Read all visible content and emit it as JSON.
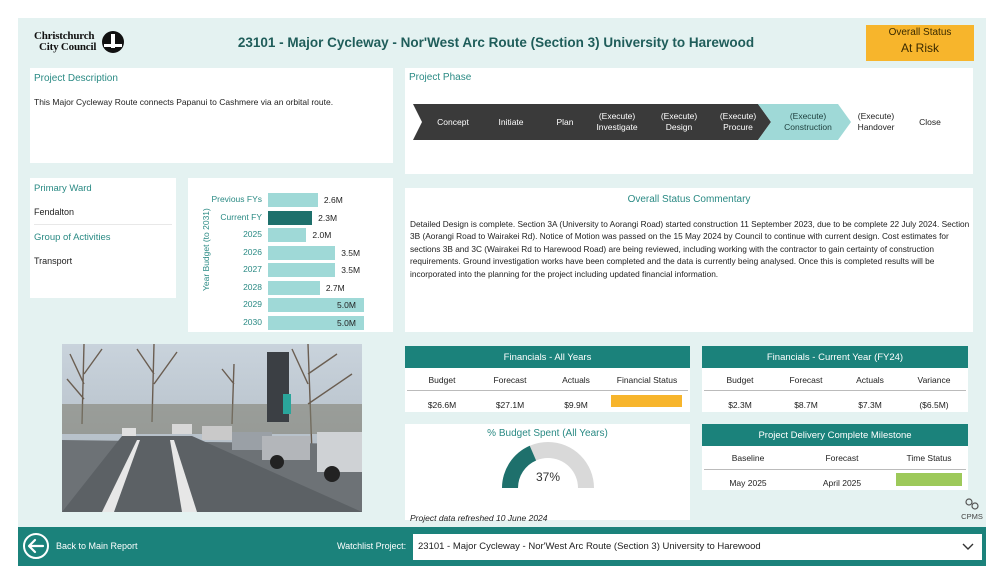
{
  "header": {
    "logo_line1": "Christchurch",
    "logo_line2": "City Council",
    "title": "23101 - Major Cycleway - Nor'West Arc Route (Section 3) University to Harewood",
    "overall_status_label": "Overall Status",
    "overall_status_value": "At Risk",
    "status_color": "#f7b52c"
  },
  "description": {
    "heading": "Project Description",
    "text": "This Major Cycleway Route connects Papanui to Cashmere via an orbital route."
  },
  "phase": {
    "heading": "Project Phase",
    "steps": [
      {
        "label": "Concept",
        "state": "done"
      },
      {
        "label": "Initiate",
        "state": "done"
      },
      {
        "label": "Plan",
        "state": "done"
      },
      {
        "label": "(Execute)\nInvestigate",
        "state": "done"
      },
      {
        "label": "(Execute)\nDesign",
        "state": "done"
      },
      {
        "label": "(Execute)\nProcure",
        "state": "done"
      },
      {
        "label": "(Execute)\nConstruction",
        "state": "current"
      },
      {
        "label": "(Execute)\nHandover",
        "state": "future"
      },
      {
        "label": "Close",
        "state": "future"
      }
    ]
  },
  "info": {
    "ward_label": "Primary Ward",
    "ward_value": "Fendalton",
    "group_label": "Group of Activities",
    "group_value": "Transport"
  },
  "budget_chart": {
    "ylabel": "Year Budget (to 2031)"
  },
  "chart_data": {
    "type": "bar",
    "orientation": "horizontal",
    "categories": [
      "Previous FYs",
      "Current FY",
      "2025",
      "2026",
      "2027",
      "2028",
      "2029",
      "2030"
    ],
    "values": [
      2.6,
      2.3,
      2.0,
      3.5,
      3.5,
      2.7,
      5.0,
      5.0
    ],
    "labels": [
      "2.6M",
      "2.3M",
      "2.0M",
      "3.5M",
      "3.5M",
      "2.7M",
      "5.0M",
      "5.0M"
    ],
    "highlight": "Current FY",
    "ylabel": "Year Budget (to 2031)",
    "xlim": [
      0,
      5.0
    ],
    "colors": {
      "default": "#9fd9d7",
      "highlight": "#1e706c"
    }
  },
  "commentary": {
    "heading": "Overall Status Commentary",
    "text": "Detailed Design is complete. Section 3A (University to Aorangi Road) started construction 11 September 2023, due to be complete 22 July 2024. Section 3B (Aorangi Road to Wairakei Rd). Notice of Motion was passed on the 15 May 2024 by Council to continue with current design. Cost estimates for sections 3B and 3C (Wairakei Rd to Harewood Road) are being reviewed, including working with the contractor to gain certainty of construction requirements. Ground investigation works have been completed and the data is currently being analysed. Once this is completed results will be incorporated into the planning for the project including updated financial information."
  },
  "fin_all": {
    "heading": "Financials - All Years",
    "cols": [
      "Budget",
      "Forecast",
      "Actuals",
      "Financial Status"
    ],
    "vals": [
      "$26.6M",
      "$27.1M",
      "$9.9M"
    ],
    "status_color": "#f7b52c"
  },
  "fin_current": {
    "heading": "Financials - Current Year (FY24)",
    "cols": [
      "Budget",
      "Forecast",
      "Actuals",
      "Variance"
    ],
    "vals": [
      "$2.3M",
      "$8.7M",
      "$7.3M",
      "($6.5M)"
    ]
  },
  "gauge": {
    "heading": "% Budget Spent (All Years)",
    "value_label": "37%",
    "value": 0.37
  },
  "milestone": {
    "heading": "Project Delivery Complete Milestone",
    "cols": [
      "Baseline",
      "Forecast",
      "Time Status"
    ],
    "vals": [
      "May 2025",
      "April 2025"
    ],
    "status_color": "#9dc95a"
  },
  "refresh_text": "Project data refreshed 10 June 2024",
  "cpms_label": "CPMS",
  "footer": {
    "back_label": "Back to Main Report",
    "watchlist_label": "Watchlist Project:",
    "watchlist_value": "23101 - Major Cycleway - Nor'West Arc Route (Section 3) University to Harewood"
  }
}
